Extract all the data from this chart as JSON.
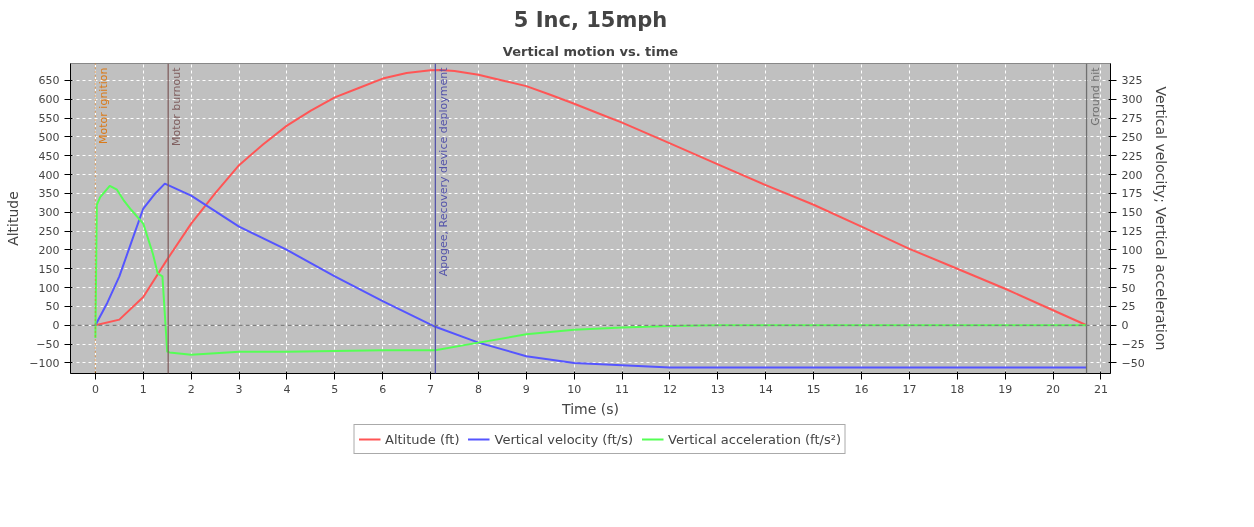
{
  "chart_data": {
    "type": "line",
    "title": "5 Inc, 15mph",
    "subtitle": "Vertical motion vs. time",
    "xlabel": "Time (s)",
    "ylabel": "Altitude",
    "y2label": "Vertical velocity; Vertical acceleration",
    "xlim": [
      -0.52,
      21.2
    ],
    "xticks": [
      0,
      1,
      2,
      3,
      4,
      5,
      6,
      7,
      8,
      9,
      10,
      11,
      12,
      13,
      14,
      15,
      16,
      17,
      18,
      19,
      20,
      21
    ],
    "ylim": [
      -128,
      695
    ],
    "yticks": [
      -100,
      -50,
      0,
      50,
      100,
      150,
      200,
      250,
      300,
      350,
      400,
      450,
      500,
      550,
      600,
      650
    ],
    "y2lim": [
      -64,
      347.5
    ],
    "y2ticks": [
      -50,
      -25,
      0,
      25,
      50,
      75,
      100,
      125,
      150,
      175,
      200,
      225,
      250,
      275,
      300,
      325
    ],
    "grid": true,
    "legend": "bottom",
    "marker": "none",
    "line_style": "solid",
    "series": [
      {
        "name": "Altitude (ft)",
        "color": "#ff5555",
        "x": [
          0,
          0.5,
          1,
          1.5,
          2,
          2.5,
          3,
          3.5,
          4,
          4.5,
          5,
          5.5,
          6,
          6.5,
          7,
          7.2,
          7.5,
          8,
          8.5,
          9,
          9.5,
          10,
          10.5,
          11,
          12,
          13,
          14,
          15,
          16,
          17,
          18,
          19,
          20,
          20.7
        ],
        "values": [
          0,
          15,
          75,
          175,
          270,
          350,
          425,
          480,
          530,
          570,
          605,
          630,
          655,
          670,
          677,
          678,
          675,
          665,
          650,
          635,
          612,
          588,
          563,
          538,
          483,
          427,
          372,
          320,
          262,
          203,
          150,
          97,
          40,
          0
        ]
      },
      {
        "name": "Vertical velocity (ft/s)",
        "color": "#5555ff",
        "axis": "y2",
        "x": [
          0,
          0.25,
          0.5,
          0.75,
          1,
          1.25,
          1.45,
          2,
          3,
          4,
          5,
          6,
          7.1,
          8,
          9,
          10,
          11,
          12,
          14,
          16,
          18,
          20.7
        ],
        "values": [
          0,
          30,
          65,
          110,
          155,
          175,
          188,
          172,
          131,
          100,
          65,
          32,
          -2,
          -23,
          -41,
          -50,
          -53,
          -56,
          -56,
          -56,
          -56,
          -56
        ]
      },
      {
        "name": "Vertical acceleration (ft/s²)",
        "color": "#55ff55",
        "axis": "y2",
        "x": [
          0,
          0.03,
          0.1,
          0.3,
          0.45,
          0.6,
          0.75,
          1,
          1.2,
          1.3,
          1.4,
          1.5,
          1.55,
          2,
          2.5,
          3,
          4,
          5,
          6,
          7.1,
          8,
          9,
          10,
          11,
          12,
          13,
          16,
          20.7
        ],
        "values": [
          -17,
          160,
          170,
          185,
          180,
          165,
          153,
          135,
          95,
          69,
          65,
          -35,
          -36,
          -39,
          -37,
          -35,
          -35,
          -34,
          -33,
          -33,
          -23,
          -12,
          -6,
          -3,
          -1,
          0,
          0,
          0
        ]
      }
    ],
    "ref_lines": [
      {
        "axis": "x",
        "value": 0,
        "label": "Motor ignition",
        "color": "#d97a1a",
        "line_style": "dotted"
      },
      {
        "axis": "x",
        "value": 1.52,
        "label": "Motor burnout",
        "color": "#806060",
        "line_style": "solid"
      },
      {
        "axis": "x",
        "value": 7.1,
        "label": "Apogee, Recovery device deployment",
        "color": "#5555aa",
        "line_style": "solid"
      },
      {
        "axis": "x",
        "value": 20.7,
        "label": "Ground hit",
        "color": "#707070",
        "line_style": "solid"
      },
      {
        "axis": "y",
        "value": 0,
        "color": "#808080",
        "line_style": "dashed"
      }
    ]
  }
}
